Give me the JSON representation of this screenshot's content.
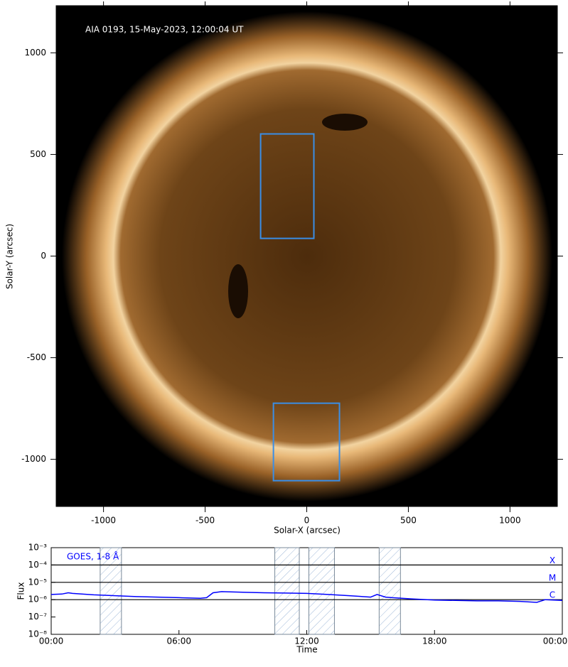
{
  "chart_data": [
    {
      "type": "image",
      "annotation": "AIA 0193, 15-May-2023, 12:00:04 UT",
      "xlabel": "Solar-X (arcsec)",
      "ylabel": "Solar-Y (arcsec)",
      "xlim": [
        -1233,
        1233
      ],
      "ylim": [
        -1232,
        1232
      ],
      "xticks": [
        -1000,
        -500,
        0,
        500,
        1000
      ],
      "yticks": [
        -1000,
        -500,
        0,
        500,
        1000
      ],
      "box_color": "#3a8ee6",
      "boxes": [
        {
          "x": [
            -227,
            35
          ],
          "y": [
            87,
            601
          ]
        },
        {
          "x": [
            -164,
            161
          ],
          "y": [
            -1105,
            -724
          ]
        }
      ]
    },
    {
      "type": "line",
      "xlabel": "Time",
      "ylabel": "Flux",
      "log_y": true,
      "xlim": [
        0,
        24
      ],
      "xticks": [
        {
          "value": 0,
          "label": "00:00"
        },
        {
          "value": 6,
          "label": "06:00"
        },
        {
          "value": 12,
          "label": "12:00"
        },
        {
          "value": 18,
          "label": "18:00"
        },
        {
          "value": 24,
          "label": "00:00"
        }
      ],
      "ylim": [
        1e-08,
        0.001
      ],
      "yticks": [
        {
          "value": 1e-08,
          "label": "10⁻⁸"
        },
        {
          "value": 1e-07,
          "label": "10⁻⁷"
        },
        {
          "value": 1e-06,
          "label": "10⁻⁶"
        },
        {
          "value": 1e-05,
          "label": "10⁻⁵"
        },
        {
          "value": 0.0001,
          "label": "10⁻⁴"
        },
        {
          "value": 0.001,
          "label": "10⁻³"
        }
      ],
      "flare_classes": [
        {
          "label": "X",
          "value": 0.0001
        },
        {
          "label": "M",
          "value": 1e-05
        },
        {
          "label": "C",
          "value": 1e-06
        }
      ],
      "intervals": [
        [
          2.3,
          3.3
        ],
        [
          10.5,
          11.65
        ],
        [
          12.1,
          13.3
        ],
        [
          15.4,
          16.4
        ]
      ],
      "x": [
        0,
        0.5,
        0.8,
        1,
        2,
        3,
        4,
        5,
        6,
        7,
        7.3,
        7.6,
        8,
        9,
        10,
        11,
        12,
        13,
        14,
        15,
        15.3,
        15.7,
        16,
        17,
        18,
        19,
        20,
        21,
        22,
        22.8,
        23.2,
        24
      ],
      "series": [
        {
          "name": "GOES, 1-8 Å",
          "color": "#0000ff",
          "values": [
            2e-06,
            2.1e-06,
            2.5e-06,
            2.3e-06,
            1.9e-06,
            1.7e-06,
            1.5e-06,
            1.4e-06,
            1.3e-06,
            1.2e-06,
            1.3e-06,
            2.5e-06,
            2.9e-06,
            2.7e-06,
            2.5e-06,
            2.4e-06,
            2.3e-06,
            2e-06,
            1.7e-06,
            1.4e-06,
            2e-06,
            1.4e-06,
            1.3e-06,
            1.1e-06,
            9.5e-07,
            9e-07,
            8.5e-07,
            8.5e-07,
            8e-07,
            7e-07,
            1e-06,
            9e-07
          ]
        }
      ]
    }
  ]
}
